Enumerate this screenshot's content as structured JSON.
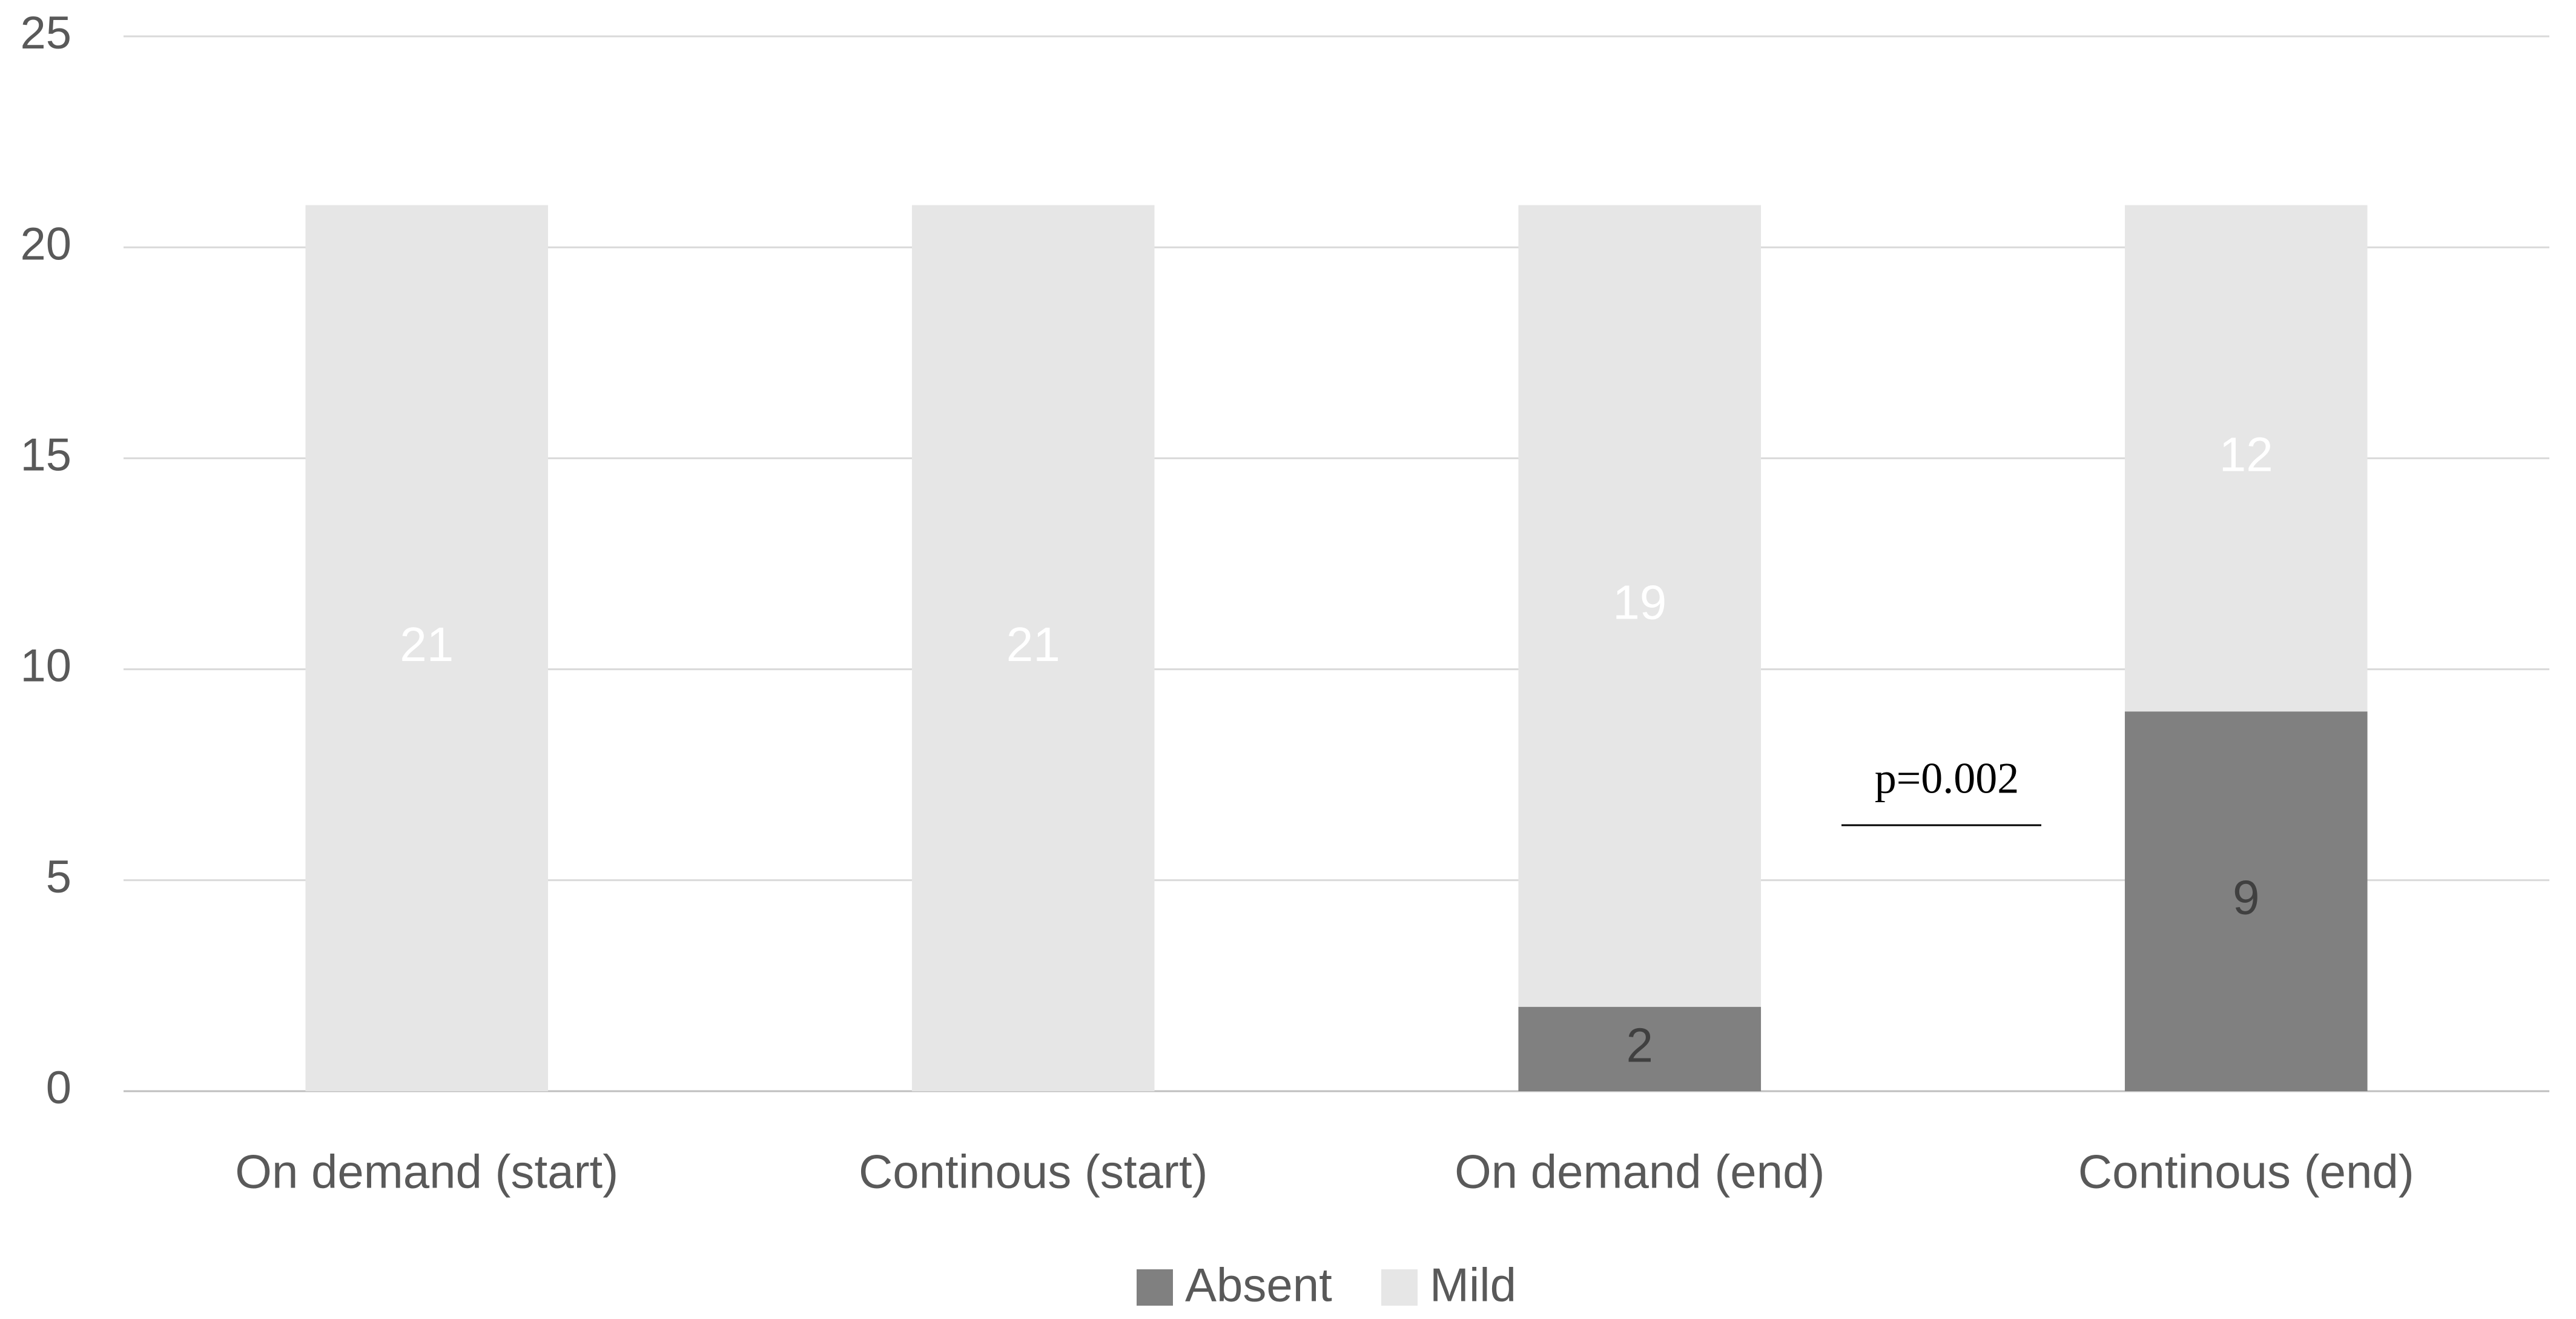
{
  "chart_data": {
    "type": "bar",
    "stacked": true,
    "categories": [
      "On demand (start)",
      "Continous (start)",
      "On demand (end)",
      "Continous (end)"
    ],
    "series": [
      {
        "name": "Absent",
        "color": "#808080",
        "label_color": "#404040",
        "values": [
          null,
          null,
          2,
          9
        ]
      },
      {
        "name": "Mild",
        "color": "#e6e6e6",
        "label_color": "#ffffff",
        "values": [
          21,
          21,
          19,
          12
        ]
      }
    ],
    "ylim": [
      0,
      25
    ],
    "yticks": [
      0,
      5,
      10,
      15,
      20,
      25
    ],
    "grid": true,
    "legend": "bottom",
    "annotations": [
      {
        "text": "p=0.002"
      }
    ]
  }
}
